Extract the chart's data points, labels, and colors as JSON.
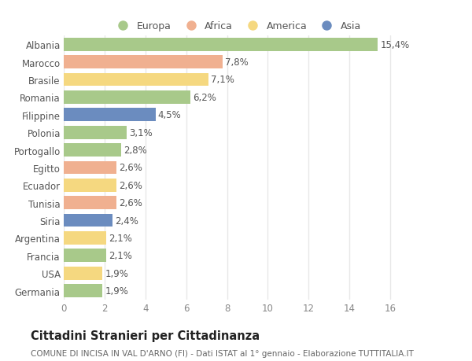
{
  "categories": [
    "Albania",
    "Marocco",
    "Brasile",
    "Romania",
    "Filippine",
    "Polonia",
    "Portogallo",
    "Egitto",
    "Ecuador",
    "Tunisia",
    "Siria",
    "Argentina",
    "Francia",
    "USA",
    "Germania"
  ],
  "values": [
    15.4,
    7.8,
    7.1,
    6.2,
    4.5,
    3.1,
    2.8,
    2.6,
    2.6,
    2.6,
    2.4,
    2.1,
    2.1,
    1.9,
    1.9
  ],
  "labels": [
    "15,4%",
    "7,8%",
    "7,1%",
    "6,2%",
    "4,5%",
    "3,1%",
    "2,8%",
    "2,6%",
    "2,6%",
    "2,6%",
    "2,4%",
    "2,1%",
    "2,1%",
    "1,9%",
    "1,9%"
  ],
  "continent": [
    "Europa",
    "Africa",
    "America",
    "Europa",
    "Asia",
    "Europa",
    "Europa",
    "Africa",
    "America",
    "Africa",
    "Asia",
    "America",
    "Europa",
    "America",
    "Europa"
  ],
  "colors": {
    "Europa": "#a8c98a",
    "Africa": "#f0b090",
    "America": "#f5d880",
    "Asia": "#6b8cbf"
  },
  "legend_order": [
    "Europa",
    "Africa",
    "America",
    "Asia"
  ],
  "legend_colors": [
    "#a8c98a",
    "#f0b090",
    "#f5d880",
    "#6b8cbf"
  ],
  "title": "Cittadini Stranieri per Cittadinanza",
  "subtitle": "COMUNE DI INCISA IN VAL D'ARNO (FI) - Dati ISTAT al 1° gennaio - Elaborazione TUTTITALIA.IT",
  "xlim": [
    0,
    17
  ],
  "xticks": [
    0,
    2,
    4,
    6,
    8,
    10,
    12,
    14,
    16
  ],
  "background_color": "#ffffff",
  "plot_bg_color": "#ffffff",
  "grid_color": "#e8e8e8",
  "bar_height": 0.75,
  "label_fontsize": 8.5,
  "tick_fontsize": 8.5,
  "title_fontsize": 10.5,
  "subtitle_fontsize": 7.5
}
